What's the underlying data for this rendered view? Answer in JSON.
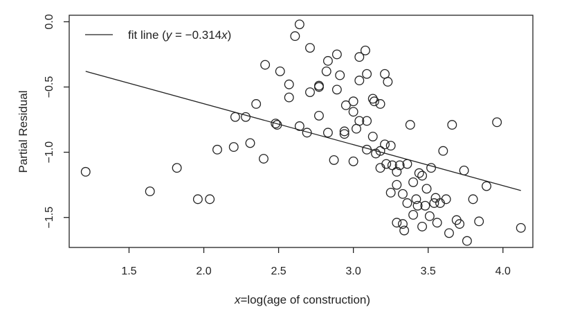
{
  "chart_data": {
    "type": "scatter",
    "xlabel": {
      "var": "x",
      "rest": "=log(age of construction)"
    },
    "ylabel": "Partial Residual",
    "xlim": [
      1.1,
      4.2
    ],
    "ylim": [
      -1.73,
      0.05
    ],
    "xticks": [
      1.5,
      2.0,
      2.5,
      3.0,
      3.5,
      4.0
    ],
    "xtick_labels": [
      "1.5",
      "2.0",
      "2.5",
      "3.0",
      "3.5",
      "4.0"
    ],
    "yticks": [
      0.0,
      -0.5,
      -1.0,
      -1.5
    ],
    "ytick_labels": [
      "0.0",
      "−0.5",
      "−1.0",
      "−1.5"
    ],
    "grid": false,
    "legend": {
      "placement": "top-left",
      "label_prefix": "fit line (",
      "y": "y",
      "eq": " = −0.314",
      "x": "x",
      "suffix": ")"
    },
    "fit_line": {
      "slope": -0.314,
      "intercept": 0,
      "x_range": [
        1.21,
        4.12
      ]
    },
    "points": [
      [
        1.21,
        -1.15
      ],
      [
        1.64,
        -1.3
      ],
      [
        1.82,
        -1.12
      ],
      [
        1.96,
        -1.36
      ],
      [
        2.04,
        -1.36
      ],
      [
        2.09,
        -0.98
      ],
      [
        2.2,
        -0.96
      ],
      [
        2.21,
        -0.73
      ],
      [
        2.28,
        -0.73
      ],
      [
        2.31,
        -0.93
      ],
      [
        2.35,
        -0.63
      ],
      [
        2.4,
        -1.05
      ],
      [
        2.41,
        -0.33
      ],
      [
        2.48,
        -0.78
      ],
      [
        2.49,
        -0.79
      ],
      [
        2.51,
        -0.38
      ],
      [
        2.57,
        -0.48
      ],
      [
        2.57,
        -0.58
      ],
      [
        2.64,
        -0.8
      ],
      [
        2.61,
        -0.11
      ],
      [
        2.64,
        -0.02
      ],
      [
        2.69,
        -0.85
      ],
      [
        2.71,
        -0.2
      ],
      [
        2.71,
        -0.54
      ],
      [
        2.77,
        -0.5
      ],
      [
        2.77,
        -0.49
      ],
      [
        2.77,
        -0.72
      ],
      [
        2.82,
        -0.38
      ],
      [
        2.83,
        -0.3
      ],
      [
        2.83,
        -0.85
      ],
      [
        2.87,
        -1.06
      ],
      [
        2.89,
        -0.25
      ],
      [
        2.89,
        -0.52
      ],
      [
        2.91,
        -0.41
      ],
      [
        2.94,
        -0.84
      ],
      [
        2.94,
        -0.86
      ],
      [
        2.95,
        -0.64
      ],
      [
        3.0,
        -0.61
      ],
      [
        3.0,
        -0.69
      ],
      [
        3.0,
        -1.07
      ],
      [
        3.02,
        -0.82
      ],
      [
        3.04,
        -0.76
      ],
      [
        3.04,
        -0.27
      ],
      [
        3.04,
        -0.45
      ],
      [
        3.08,
        -0.22
      ],
      [
        3.09,
        -0.4
      ],
      [
        3.09,
        -0.76
      ],
      [
        3.09,
        -0.98
      ],
      [
        3.13,
        -0.88
      ],
      [
        3.13,
        -0.59
      ],
      [
        3.14,
        -0.61
      ],
      [
        3.18,
        -0.63
      ],
      [
        3.15,
        -1.01
      ],
      [
        3.18,
        -0.99
      ],
      [
        3.21,
        -0.94
      ],
      [
        3.21,
        -0.4
      ],
      [
        3.23,
        -0.46
      ],
      [
        3.25,
        -0.95
      ],
      [
        3.18,
        -1.12
      ],
      [
        3.22,
        -1.09
      ],
      [
        3.26,
        -1.1
      ],
      [
        3.29,
        -1.15
      ],
      [
        3.31,
        -1.1
      ],
      [
        3.36,
        -1.09
      ],
      [
        3.38,
        -0.79
      ],
      [
        3.25,
        -1.31
      ],
      [
        3.33,
        -1.32
      ],
      [
        3.29,
        -1.25
      ],
      [
        3.4,
        -1.23
      ],
      [
        3.49,
        -1.28
      ],
      [
        3.44,
        -1.16
      ],
      [
        3.46,
        -1.18
      ],
      [
        3.36,
        -1.39
      ],
      [
        3.42,
        -1.36
      ],
      [
        3.43,
        -1.41
      ],
      [
        3.48,
        -1.41
      ],
      [
        3.54,
        -1.39
      ],
      [
        3.55,
        -1.35
      ],
      [
        3.58,
        -1.39
      ],
      [
        3.62,
        -1.36
      ],
      [
        3.52,
        -1.12
      ],
      [
        3.6,
        -0.99
      ],
      [
        3.66,
        -0.79
      ],
      [
        3.74,
        -1.14
      ],
      [
        3.89,
        -1.26
      ],
      [
        3.96,
        -0.77
      ],
      [
        3.8,
        -1.36
      ],
      [
        3.29,
        -1.54
      ],
      [
        3.33,
        -1.55
      ],
      [
        3.34,
        -1.6
      ],
      [
        3.4,
        -1.48
      ],
      [
        3.46,
        -1.57
      ],
      [
        3.51,
        -1.49
      ],
      [
        3.56,
        -1.54
      ],
      [
        3.64,
        -1.62
      ],
      [
        3.69,
        -1.52
      ],
      [
        3.71,
        -1.55
      ],
      [
        3.76,
        -1.68
      ],
      [
        3.84,
        -1.53
      ],
      [
        4.12,
        -1.58
      ]
    ]
  }
}
